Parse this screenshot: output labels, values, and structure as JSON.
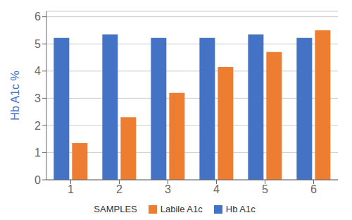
{
  "chart_data": {
    "type": "bar",
    "categories": [
      1,
      2,
      3,
      4,
      5,
      6
    ],
    "series": [
      {
        "name": "Hb A1c",
        "color": "#4472c4",
        "values": [
          5.22,
          5.35,
          5.22,
          5.22,
          5.35,
          5.22
        ]
      },
      {
        "name": "Labile A1c",
        "color": "#ed7d31",
        "values": [
          1.35,
          2.3,
          3.2,
          4.15,
          4.7,
          5.5
        ]
      }
    ],
    "ylabel": "Hb A1c %",
    "legend_title": "SAMPLES",
    "ylim": [
      0,
      6.2
    ],
    "yticks": [
      0,
      1,
      2,
      3,
      4,
      5,
      6
    ],
    "grid": true,
    "legend": "bottom"
  }
}
